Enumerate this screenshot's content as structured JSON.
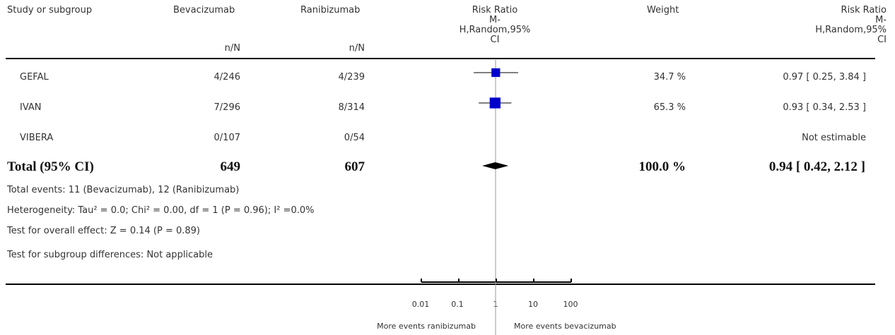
{
  "header": {
    "study": "Study or subgroup",
    "group1": "Bevacizumab",
    "group2": "Ranibizumab",
    "plot_col_line1": "Risk Ratio",
    "plot_col_line2": "M-",
    "plot_col_line3": "H,Random,95%",
    "plot_col_line4": "CI",
    "weight": "Weight",
    "rr_col_line1": "Risk Ratio",
    "rr_col_line2": "M-",
    "rr_col_line3": "H,Random,95%",
    "rr_col_line4": "CI",
    "nN1": "n/N",
    "nN2": "n/N"
  },
  "studies": [
    {
      "name": "GEFAL",
      "g1": "4/246",
      "g2": "4/239",
      "weight": "34.7 %",
      "rr": "0.97 [ 0.25, 3.84 ]"
    },
    {
      "name": "IVAN",
      "g1": "7/296",
      "g2": "8/314",
      "weight": "65.3 %",
      "rr": "0.93 [ 0.34, 2.53 ]"
    },
    {
      "name": "VIBERA",
      "g1": "0/107",
      "g2": "0/54",
      "weight": "",
      "rr": "Not estimable"
    }
  ],
  "total": {
    "label": "Total (95% CI)",
    "g1": "649",
    "g2": "607",
    "weight": "100.0 %",
    "rr": "0.94 [ 0.42, 2.12 ]"
  },
  "footnotes": {
    "events": "Total events: 11 (Bevacizumab), 12 (Ranibizumab)",
    "heterogeneity": "Heterogeneity: Tau² = 0.0; Chi² = 0.00, df = 1 (P = 0.96); I² =0.0%",
    "overall": "Test for overall effect: Z = 0.14 (P = 0.89)",
    "subgroup": "Test for subgroup differences: Not applicable"
  },
  "axis": {
    "tick_labels": [
      "0.01",
      "0.1",
      "1",
      "10",
      "100"
    ],
    "left_label": "More events ranibizumab",
    "right_label": "More events bevacizumab"
  },
  "colors": {
    "marker": "#0000cc",
    "line": "#000000"
  },
  "chart_data": {
    "type": "forest",
    "scale": "log",
    "xlim": [
      0.01,
      100
    ],
    "ticks": [
      0.01,
      0.1,
      1,
      10,
      100
    ],
    "null_value": 1,
    "points": [
      {
        "study": "GEFAL",
        "rr": 0.97,
        "lo": 0.25,
        "hi": 3.84,
        "weight": 34.7
      },
      {
        "study": "IVAN",
        "rr": 0.93,
        "lo": 0.34,
        "hi": 2.53,
        "weight": 65.3
      }
    ],
    "summary": {
      "rr": 0.94,
      "lo": 0.42,
      "hi": 2.12
    }
  }
}
